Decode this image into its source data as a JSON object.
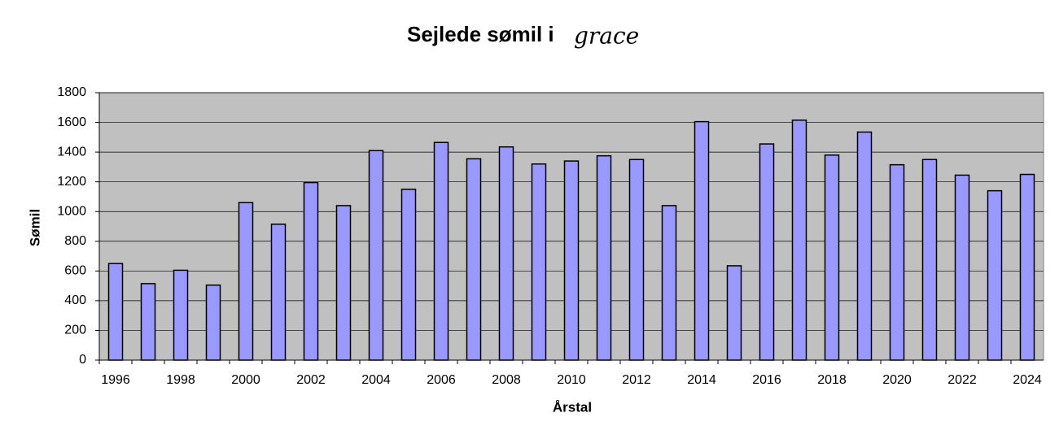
{
  "chart_data": {
    "type": "bar",
    "title": "Sejlede sømil i",
    "title_name": "grace",
    "x_label": "Årstal",
    "y_label": "Sømil",
    "categories": [
      "1996",
      null,
      "1998",
      null,
      "2000",
      null,
      "2002",
      null,
      "2004",
      null,
      "2006",
      null,
      "2008",
      null,
      "2010",
      null,
      "2012",
      null,
      "2014",
      null,
      "2016",
      null,
      "2018",
      null,
      "2020",
      null,
      "2022",
      null,
      "2024"
    ],
    "values": [
      650,
      515,
      605,
      505,
      1060,
      915,
      1195,
      1040,
      1410,
      1150,
      1465,
      1355,
      1435,
      1320,
      1340,
      1375,
      1350,
      1040,
      1605,
      635,
      1455,
      1615,
      1380,
      1535,
      1315,
      1350,
      1245,
      1140,
      1250
    ],
    "color": "#9999ff",
    "plot_background": "#c0c0c0",
    "ylim": [
      0,
      1800
    ],
    "yticks": [
      0,
      200,
      400,
      600,
      800,
      1000,
      1200,
      1400,
      1600,
      1800
    ],
    "grid": true
  }
}
